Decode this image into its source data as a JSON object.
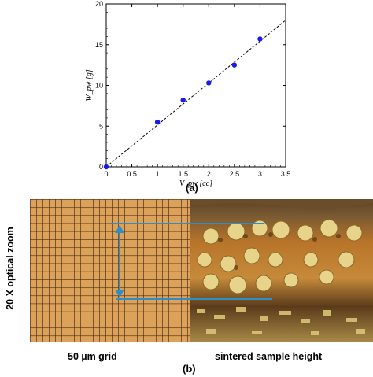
{
  "chart_data": {
    "type": "scatter",
    "title": "",
    "xlabel": "V_pw [cc]",
    "ylabel": "W_pw [g]",
    "xlim": [
      0,
      3.5
    ],
    "ylim": [
      0,
      20
    ],
    "xticks": [
      "0",
      "0.5",
      "1",
      "1.5",
      "2",
      "2.5",
      "3",
      "3.5"
    ],
    "yticks": [
      "0",
      "5",
      "10",
      "15",
      "20"
    ],
    "grid": false,
    "legend": "none",
    "points": {
      "x": [
        0,
        1,
        1.5,
        2,
        2.5,
        3
      ],
      "y": [
        0,
        5.5,
        8.2,
        10.3,
        12.5,
        15.7
      ]
    },
    "fit_line": {
      "style": "dashed",
      "x": [
        0,
        3.5
      ],
      "y": [
        0,
        18
      ]
    },
    "colors": {
      "points": "#1a1aee",
      "line": "#000000"
    }
  },
  "labels": {
    "panel_a": "(a)",
    "panel_b": "(b)",
    "side": "20 X optical zoom",
    "left_caption": "50 µm grid",
    "right_caption": "sintered sample height"
  },
  "photo": {
    "grid_color": "#d79b4e",
    "marker_color": "#2d8fc9"
  }
}
